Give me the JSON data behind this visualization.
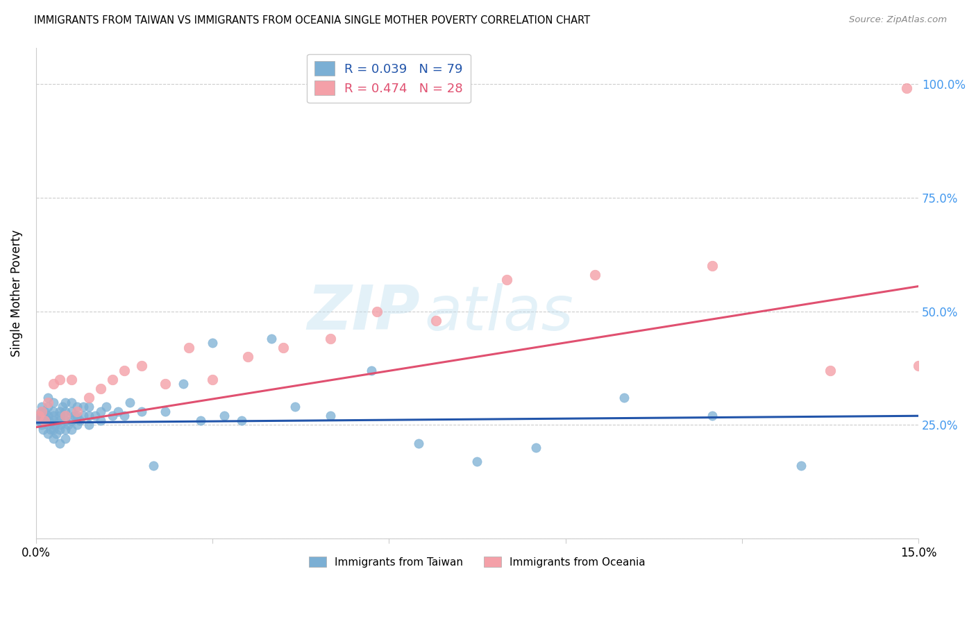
{
  "title": "IMMIGRANTS FROM TAIWAN VS IMMIGRANTS FROM OCEANIA SINGLE MOTHER POVERTY CORRELATION CHART",
  "source": "Source: ZipAtlas.com",
  "ylabel": "Single Mother Poverty",
  "xlim": [
    0.0,
    0.15
  ],
  "ylim": [
    0.0,
    1.08
  ],
  "yticks": [
    0.0,
    0.25,
    0.5,
    0.75,
    1.0
  ],
  "ytick_labels": [
    "",
    "25.0%",
    "50.0%",
    "75.0%",
    "100.0%"
  ],
  "xticks": [
    0.0,
    0.03,
    0.06,
    0.09,
    0.12,
    0.15
  ],
  "xtick_labels": [
    "0.0%",
    "",
    "",
    "",
    "",
    "15.0%"
  ],
  "taiwan_color": "#7BAFD4",
  "oceania_color": "#F4A0A8",
  "taiwan_line_color": "#2255AA",
  "oceania_line_color": "#E05070",
  "legend_label_taiwan": "R = 0.039   N = 79",
  "legend_label_oceania": "R = 0.474   N = 28",
  "legend_label_taiwan_bottom": "Immigrants from Taiwan",
  "legend_label_oceania_bottom": "Immigrants from Oceania",
  "watermark_zip": "ZIP",
  "watermark_atlas": "atlas",
  "taiwan_x": [
    0.0005,
    0.0007,
    0.0008,
    0.001,
    0.001,
    0.001,
    0.0012,
    0.0013,
    0.0015,
    0.0015,
    0.002,
    0.002,
    0.002,
    0.002,
    0.002,
    0.0022,
    0.0025,
    0.003,
    0.003,
    0.003,
    0.003,
    0.003,
    0.003,
    0.0032,
    0.0035,
    0.004,
    0.004,
    0.004,
    0.004,
    0.004,
    0.0042,
    0.0045,
    0.005,
    0.005,
    0.005,
    0.005,
    0.005,
    0.005,
    0.0055,
    0.006,
    0.006,
    0.006,
    0.006,
    0.0065,
    0.007,
    0.007,
    0.007,
    0.0075,
    0.008,
    0.008,
    0.009,
    0.009,
    0.009,
    0.01,
    0.011,
    0.011,
    0.012,
    0.013,
    0.014,
    0.015,
    0.016,
    0.018,
    0.02,
    0.022,
    0.025,
    0.028,
    0.03,
    0.032,
    0.035,
    0.04,
    0.044,
    0.05,
    0.057,
    0.065,
    0.075,
    0.085,
    0.1,
    0.115,
    0.13
  ],
  "taiwan_y": [
    0.26,
    0.27,
    0.28,
    0.25,
    0.27,
    0.29,
    0.24,
    0.26,
    0.28,
    0.27,
    0.23,
    0.25,
    0.27,
    0.29,
    0.31,
    0.26,
    0.24,
    0.22,
    0.24,
    0.26,
    0.28,
    0.3,
    0.27,
    0.25,
    0.23,
    0.21,
    0.24,
    0.26,
    0.28,
    0.27,
    0.25,
    0.29,
    0.22,
    0.24,
    0.26,
    0.28,
    0.3,
    0.27,
    0.25,
    0.24,
    0.26,
    0.28,
    0.3,
    0.27,
    0.25,
    0.27,
    0.29,
    0.26,
    0.27,
    0.29,
    0.25,
    0.27,
    0.29,
    0.27,
    0.26,
    0.28,
    0.29,
    0.27,
    0.28,
    0.27,
    0.3,
    0.28,
    0.16,
    0.28,
    0.34,
    0.26,
    0.43,
    0.27,
    0.26,
    0.44,
    0.29,
    0.27,
    0.37,
    0.21,
    0.17,
    0.2,
    0.31,
    0.27,
    0.16
  ],
  "oceania_x": [
    0.0005,
    0.001,
    0.0015,
    0.002,
    0.003,
    0.004,
    0.005,
    0.006,
    0.007,
    0.009,
    0.011,
    0.013,
    0.015,
    0.018,
    0.022,
    0.026,
    0.03,
    0.036,
    0.042,
    0.05,
    0.058,
    0.068,
    0.08,
    0.095,
    0.115,
    0.135,
    0.148,
    0.15
  ],
  "oceania_y": [
    0.27,
    0.28,
    0.26,
    0.3,
    0.34,
    0.35,
    0.27,
    0.35,
    0.28,
    0.31,
    0.33,
    0.35,
    0.37,
    0.38,
    0.34,
    0.42,
    0.35,
    0.4,
    0.42,
    0.44,
    0.5,
    0.48,
    0.57,
    0.58,
    0.6,
    0.37,
    0.99,
    0.38
  ],
  "tw_line_x0": 0.0,
  "tw_line_y0": 0.255,
  "tw_line_x1": 0.15,
  "tw_line_y1": 0.27,
  "oc_line_x0": 0.0,
  "oc_line_y0": 0.245,
  "oc_line_x1": 0.15,
  "oc_line_y1": 0.555
}
